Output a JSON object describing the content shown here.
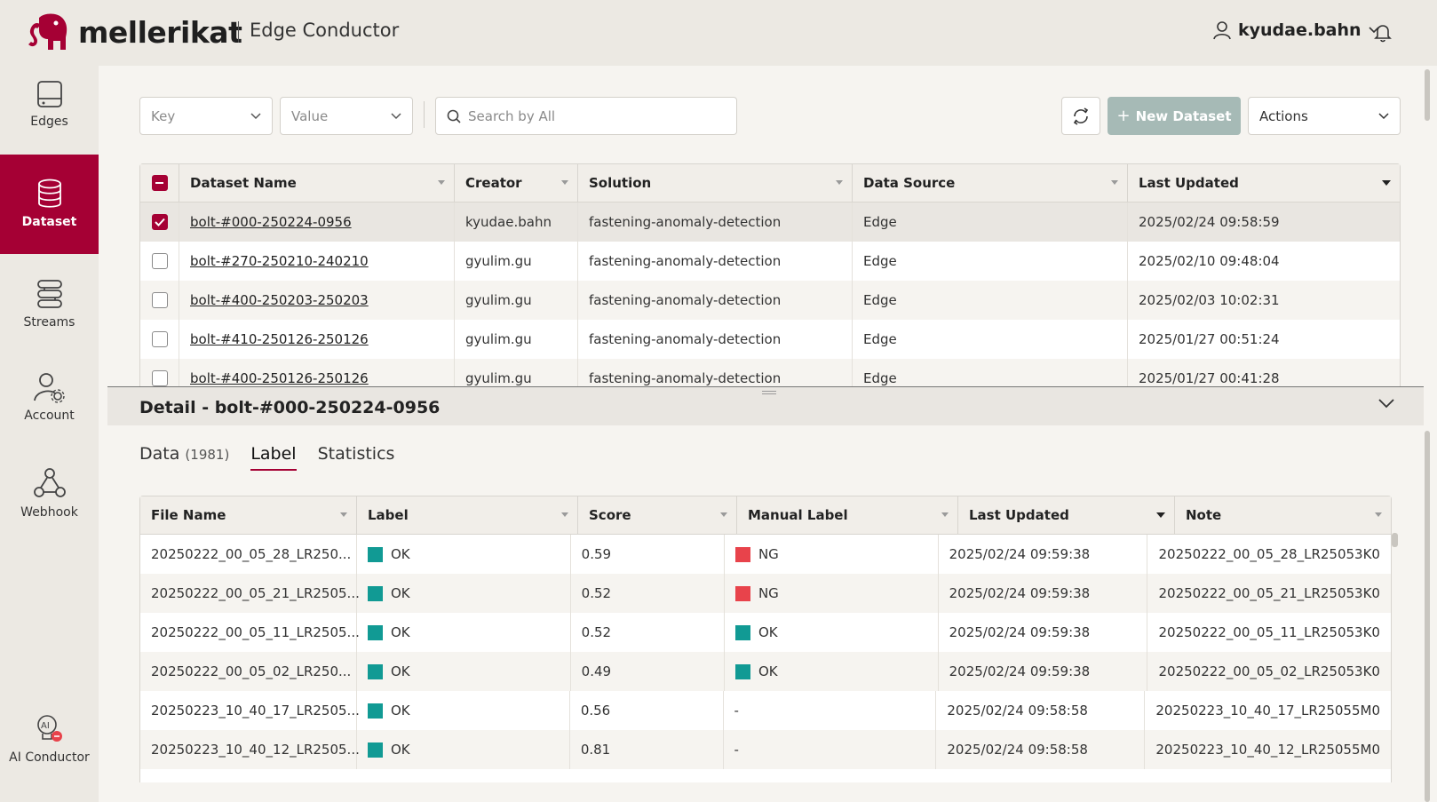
{
  "header": {
    "logo_text": "mellerikat",
    "app_name": "Edge Conductor",
    "username": "kyudae.bahn"
  },
  "sidebar": {
    "items": [
      {
        "label": "Edges",
        "icon": "edge-device-icon"
      },
      {
        "label": "Dataset",
        "icon": "database-icon",
        "active": true
      },
      {
        "label": "Streams",
        "icon": "streams-icon"
      },
      {
        "label": "Account",
        "icon": "account-settings-icon"
      },
      {
        "label": "Webhook",
        "icon": "webhook-icon"
      },
      {
        "label": "AI Conductor",
        "icon": "ai-conductor-icon"
      }
    ]
  },
  "toolbar": {
    "key_placeholder": "Key",
    "value_placeholder": "Value",
    "search_placeholder": "Search by All",
    "new_dataset_label": "New Dataset",
    "actions_label": "Actions"
  },
  "datasets": {
    "columns": [
      "Dataset Name",
      "Creator",
      "Solution",
      "Data Source",
      "Last Updated"
    ],
    "rows": [
      {
        "name": "bolt-#000-250224-0956",
        "creator": "kyudae.bahn",
        "solution": "fastening-anomaly-detection",
        "source": "Edge",
        "updated": "2025/02/24 09:58:59",
        "checked": true
      },
      {
        "name": "bolt-#270-250210-240210",
        "creator": "gyulim.gu",
        "solution": "fastening-anomaly-detection",
        "source": "Edge",
        "updated": "2025/02/10 09:48:04",
        "checked": false
      },
      {
        "name": "bolt-#400-250203-250203",
        "creator": "gyulim.gu",
        "solution": "fastening-anomaly-detection",
        "source": "Edge",
        "updated": "2025/02/03 10:02:31",
        "checked": false
      },
      {
        "name": "bolt-#410-250126-250126",
        "creator": "gyulim.gu",
        "solution": "fastening-anomaly-detection",
        "source": "Edge",
        "updated": "2025/01/27 00:51:24",
        "checked": false
      },
      {
        "name": "bolt-#400-250126-250126",
        "creator": "gyulim.gu",
        "solution": "fastening-anomaly-detection",
        "source": "Edge",
        "updated": "2025/01/27 00:41:28",
        "checked": false
      }
    ]
  },
  "detail": {
    "title": "Detail - bolt-#000-250224-0956",
    "tabs": [
      {
        "label": "Data",
        "count": "(1981)"
      },
      {
        "label": "Label",
        "active": true
      },
      {
        "label": "Statistics"
      }
    ],
    "columns": [
      "File Name",
      "Label",
      "Score",
      "Manual Label",
      "Last Updated",
      "Note"
    ],
    "rows": [
      {
        "file": "20250222_00_05_28_LR250...",
        "label": "OK",
        "score": "0.59",
        "manual": "NG",
        "updated": "2025/02/24 09:59:38",
        "note": "20250222_00_05_28_LR25053K0"
      },
      {
        "file": "20250222_00_05_21_LR2505...",
        "label": "OK",
        "score": "0.52",
        "manual": "NG",
        "updated": "2025/02/24 09:59:38",
        "note": "20250222_00_05_21_LR25053K0"
      },
      {
        "file": "20250222_00_05_11_LR2505...",
        "label": "OK",
        "score": "0.52",
        "manual": "OK",
        "updated": "2025/02/24 09:59:38",
        "note": "20250222_00_05_11_LR25053K0"
      },
      {
        "file": "20250222_00_05_02_LR250...",
        "label": "OK",
        "score": "0.49",
        "manual": "OK",
        "updated": "2025/02/24 09:59:38",
        "note": "20250222_00_05_02_LR25053K0"
      },
      {
        "file": "20250223_10_40_17_LR2505...",
        "label": "OK",
        "score": "0.56",
        "manual": "-",
        "updated": "2025/02/24 09:58:58",
        "note": "20250223_10_40_17_LR25055M0"
      },
      {
        "file": "20250223_10_40_12_LR2505...",
        "label": "OK",
        "score": "0.81",
        "manual": "-",
        "updated": "2025/02/24 09:58:58",
        "note": "20250223_10_40_12_LR25055M0"
      }
    ]
  },
  "colors": {
    "brand": "#a50034",
    "ok": "#119a94",
    "ng": "#e8434b",
    "new_dataset_bg": "#a6bab6"
  }
}
